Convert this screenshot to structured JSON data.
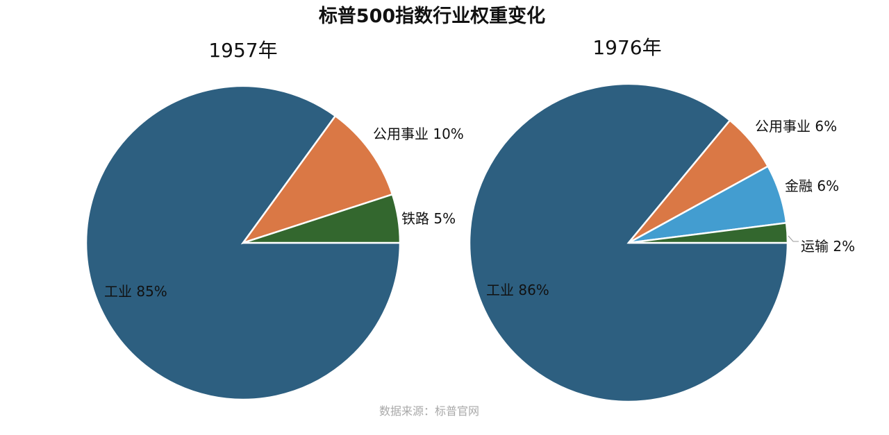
{
  "title": "标普500指数行业权重变化",
  "source": "数据来源：标普官网",
  "chart_data": [
    {
      "type": "pie",
      "title": "1957年",
      "slices": [
        {
          "label": "工业",
          "value": 85,
          "color": "#2d5f80"
        },
        {
          "label": "公用事业",
          "value": 10,
          "color": "#da7845"
        },
        {
          "label": "铁路",
          "value": 5,
          "color": "#33672e"
        }
      ]
    },
    {
      "type": "pie",
      "title": "1976年",
      "slices": [
        {
          "label": "工业",
          "value": 86,
          "color": "#2d5f80"
        },
        {
          "label": "公用事业",
          "value": 6,
          "color": "#da7845"
        },
        {
          "label": "金融",
          "value": 6,
          "color": "#439dd0"
        },
        {
          "label": "运输",
          "value": 2,
          "color": "#33672e"
        }
      ]
    }
  ]
}
